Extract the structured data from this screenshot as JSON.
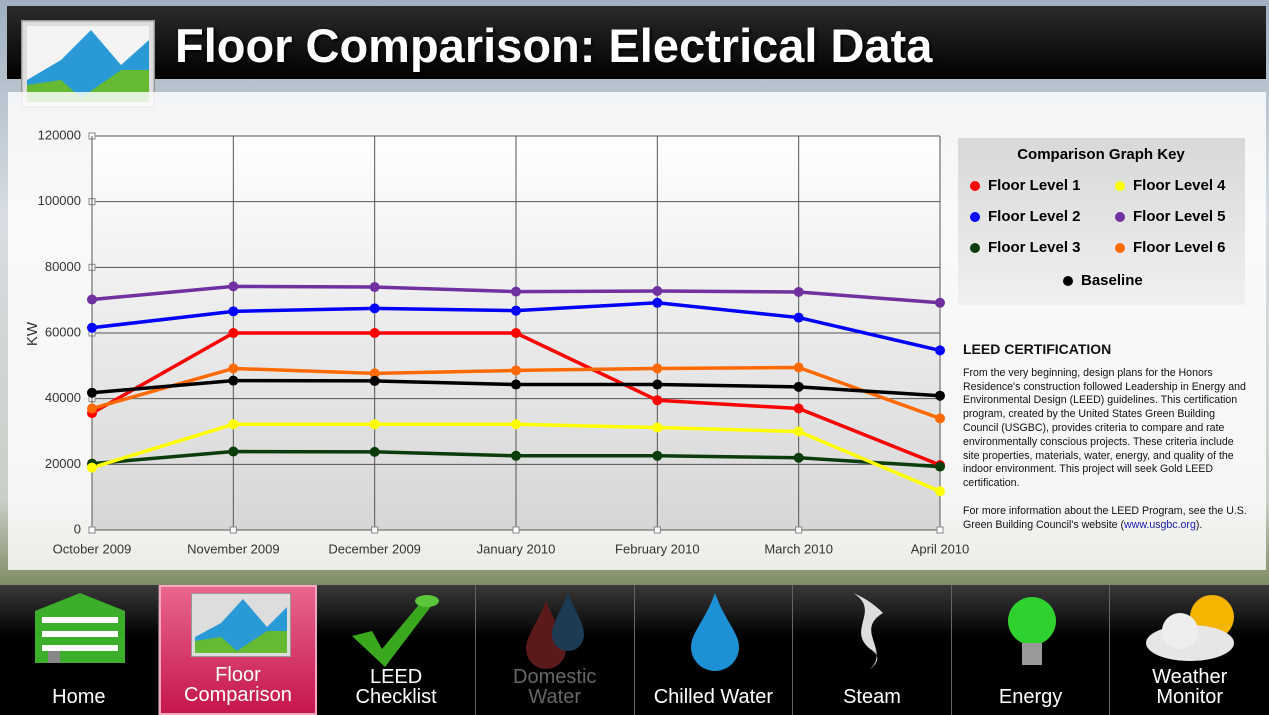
{
  "header": {
    "title": "Floor Comparison: Electrical Data"
  },
  "chart_data": {
    "type": "line",
    "y_label": "KW",
    "categories": [
      "October 2009",
      "November 2009",
      "December 2009",
      "January 2010",
      "February 2010",
      "March 2010",
      "April 2010"
    ],
    "ylim": [
      0,
      120000
    ],
    "yticks": [
      0,
      20000,
      40000,
      60000,
      80000,
      100000,
      120000
    ],
    "grid": true,
    "legend_title": "Comparison Graph Key",
    "legend_position": "right",
    "series": [
      {
        "name": "Floor Level 1",
        "color": "#ff0000",
        "values": [
          35600,
          60000,
          60000,
          60000,
          39500,
          37000,
          19800
        ]
      },
      {
        "name": "Floor Level 2",
        "color": "#0000ff",
        "values": [
          61600,
          66600,
          67500,
          66800,
          69200,
          64700,
          54700
        ]
      },
      {
        "name": "Floor Level 3",
        "color": "#0b3d0b",
        "values": [
          20200,
          23900,
          23800,
          22600,
          22600,
          22000,
          19300
        ]
      },
      {
        "name": "Floor Level 4",
        "color": "#ffff00",
        "values": [
          19000,
          32200,
          32200,
          32200,
          31200,
          30000,
          11800
        ]
      },
      {
        "name": "Floor Level 5",
        "color": "#7030a0",
        "values": [
          70200,
          74200,
          74000,
          72600,
          72800,
          72500,
          69200
        ]
      },
      {
        "name": "Floor Level 6",
        "color": "#ff6a00",
        "values": [
          37000,
          49200,
          47700,
          48600,
          49200,
          49500,
          34000
        ]
      },
      {
        "name": "Baseline",
        "color": "#000000",
        "values": [
          41800,
          45500,
          45400,
          44300,
          44300,
          43600,
          40900
        ]
      }
    ]
  },
  "leed": {
    "title": "LEED CERTIFICATION",
    "paragraph": "From the very beginning, design plans for the Honors Residence's construction followed Leadership in Energy and Environmental Design (LEED) guidelines. This certification program, created by the United States Green Building Council (USGBC), provides criteria to compare and rate environmentally conscious projects. These criteria include site properties, materials, water, energy, and quality of the indoor environment. This project will seek Gold LEED certification.",
    "more_prefix": "For more information about the LEED Program, see the U.S. Green Building Council's website (",
    "link": "www.usgbc.org",
    "more_suffix": ")."
  },
  "nav": {
    "items": [
      "Home",
      "Floor Comparison",
      "LEED Checklist",
      "Domestic Water",
      "Chilled Water",
      "Steam",
      "Energy",
      "Weather Monitor"
    ]
  }
}
